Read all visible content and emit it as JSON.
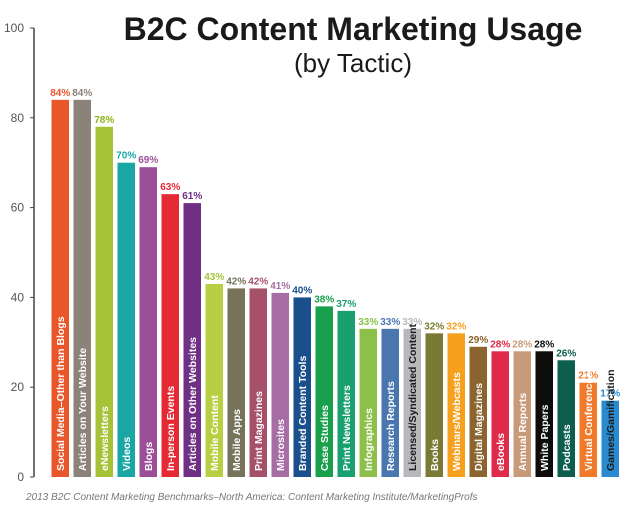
{
  "chart_data": {
    "type": "bar",
    "title": "B2C Content Marketing Usage",
    "subtitle": "(by Tactic)",
    "source": "2013 B2C Content Marketing Benchmarks–North America: Content Marketing Institute/MarketingProfs",
    "ylim": [
      0,
      100
    ],
    "yticks": [
      "0",
      "20",
      "40",
      "60",
      "80",
      "100"
    ],
    "grid": false,
    "legend": "none",
    "categories": [
      "Social Media–Other than Blogs",
      "Articles on Your Website",
      "eNewsletters",
      "Videos",
      "Blogs",
      "In-person Events",
      "Articles on Other Websites",
      "Mobile Content",
      "Mobile Apps",
      "Print Magazines",
      "Microsites",
      "Branded Content Tools",
      "Case Studies",
      "Print Newsletters",
      "Infographics",
      "Research Reports",
      "Licensed/Syndicated Content",
      "Books",
      "Webinars/Webcasts",
      "Digital Magazines",
      "eBooks",
      "Annual Reports",
      "White Papers",
      "Podcasts",
      "Virtual Conferences",
      "Games/Gamification"
    ],
    "values": [
      84,
      84,
      78,
      70,
      69,
      63,
      61,
      43,
      42,
      42,
      41,
      40,
      38,
      37,
      33,
      33,
      33,
      32,
      32,
      29,
      28,
      28,
      28,
      26,
      21,
      17
    ],
    "value_labels": [
      "84%",
      "84%",
      "78%",
      "70%",
      "69%",
      "63%",
      "61%",
      "43%",
      "42%",
      "42%",
      "41%",
      "40%",
      "38%",
      "37%",
      "33%",
      "33%",
      "33%",
      "32%",
      "32%",
      "29%",
      "28%",
      "28%",
      "28%",
      "26%",
      "21%",
      "17%"
    ],
    "colors": [
      "#e8562a",
      "#8c8279",
      "#a6c338",
      "#1aa6a4",
      "#9c4f99",
      "#e52a34",
      "#6e2f84",
      "#b8cf43",
      "#76735a",
      "#a6506a",
      "#a66ea4",
      "#1a4f8c",
      "#18a04c",
      "#18a070",
      "#8cc04a",
      "#4a76b0",
      "#b8b8bc",
      "#7a7a34",
      "#f6a01c",
      "#8c6430",
      "#e02a4a",
      "#c89a7a",
      "#0c0c0c",
      "#0c5e4e",
      "#f07a2a",
      "#2a8ad0"
    ],
    "label_colors": [
      "#e8562a",
      "#8c8279",
      "#8fb11a",
      "#1aa6a4",
      "#9c4f99",
      "#e52a34",
      "#6e2f84",
      "#a6c338",
      "#76735a",
      "#a6506a",
      "#a66ea4",
      "#1a4f8c",
      "#18a04c",
      "#18a070",
      "#8cc04a",
      "#4a76b0",
      "#b8b8bc",
      "#7a7a34",
      "#f6a01c",
      "#8c6430",
      "#e02a4a",
      "#c89a7a",
      "#0c0c0c",
      "#0c5e4e",
      "#f07a2a",
      "#2a8ad0"
    ],
    "category_text_colors": [
      "#ffffff",
      "#ffffff",
      "#ffffff",
      "#ffffff",
      "#ffffff",
      "#ffffff",
      "#ffffff",
      "#ffffff",
      "#ffffff",
      "#ffffff",
      "#ffffff",
      "#ffffff",
      "#ffffff",
      "#ffffff",
      "#ffffff",
      "#ffffff",
      "#1a1a1a",
      "#ffffff",
      "#ffffff",
      "#ffffff",
      "#ffffff",
      "#ffffff",
      "#ffffff",
      "#ffffff",
      "#ffffff",
      "#1a1a1a"
    ]
  }
}
